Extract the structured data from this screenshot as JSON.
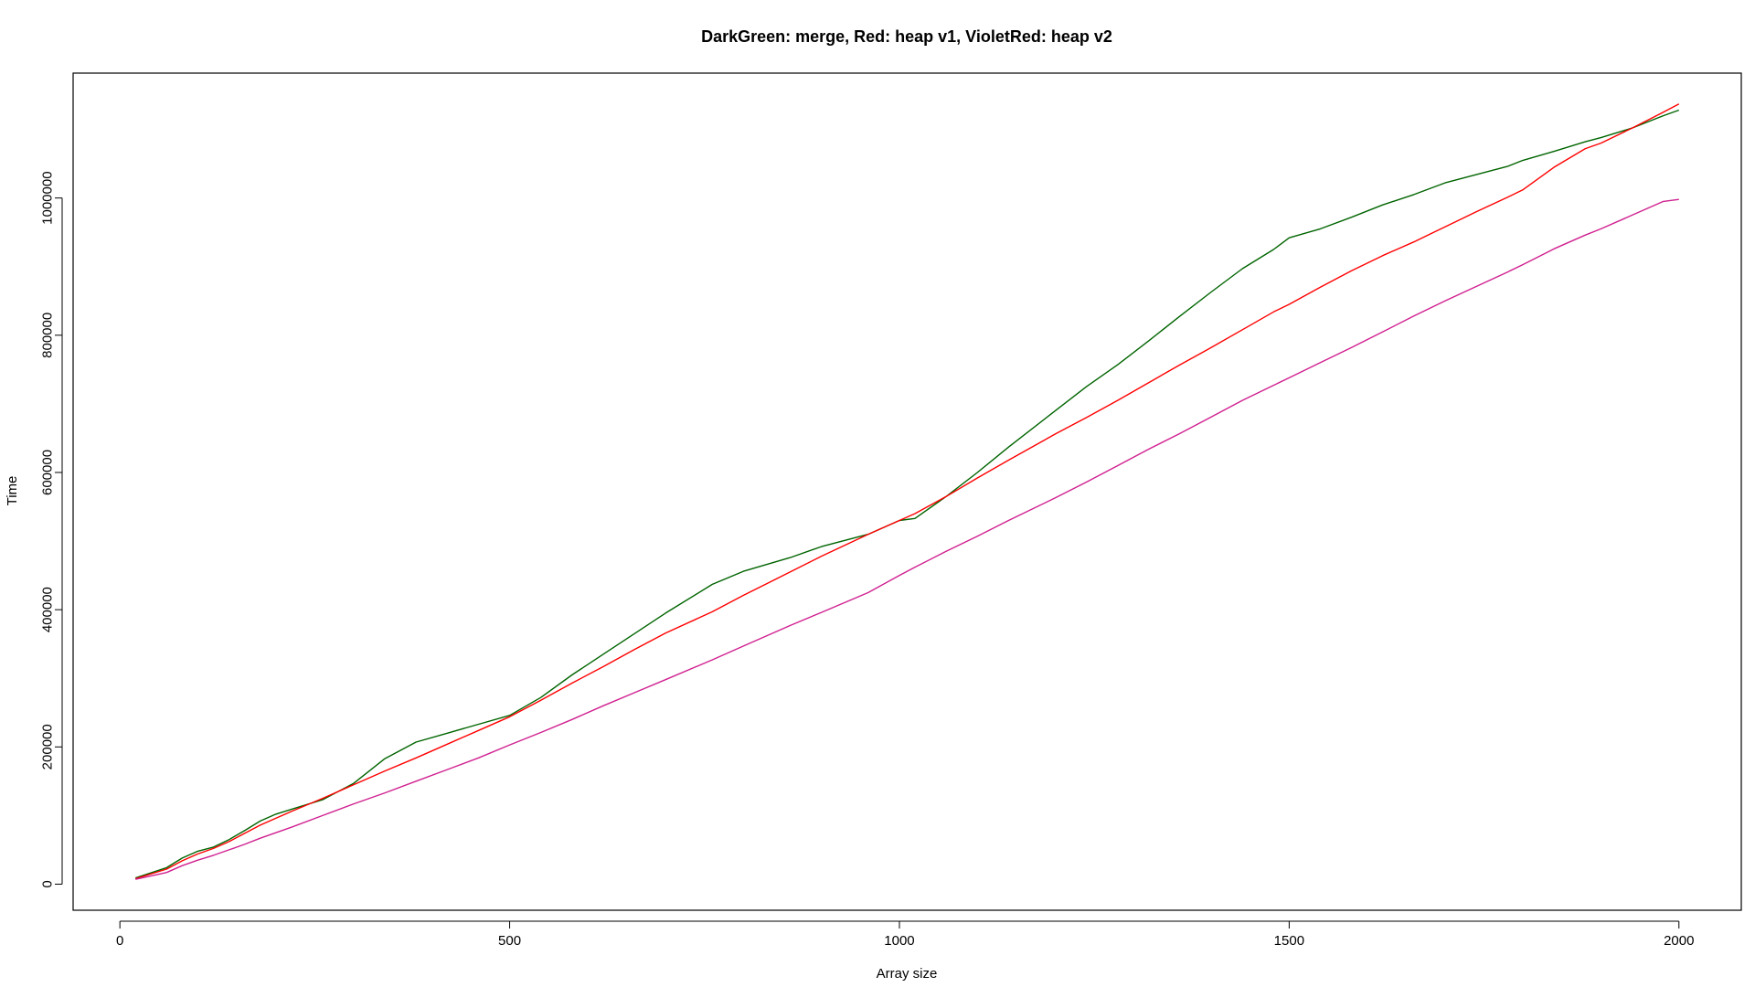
{
  "chart_data": {
    "type": "line",
    "title": "DarkGreen: merge, Red: heap v1, VioletRed: heap v2",
    "xlabel": "Array size",
    "ylabel": "Time",
    "xlim": [
      -60,
      2080
    ],
    "ylim": [
      -38000,
      1182000
    ],
    "x_ticks": [
      0,
      500,
      1000,
      1500,
      2000
    ],
    "y_ticks": [
      0,
      200000,
      400000,
      600000,
      800000,
      1000000
    ],
    "grid": false,
    "legend": "none",
    "x": [
      20,
      60,
      80,
      100,
      120,
      140,
      160,
      180,
      200,
      220,
      260,
      300,
      340,
      380,
      420,
      460,
      500,
      540,
      580,
      620,
      660,
      700,
      760,
      800,
      860,
      900,
      960,
      1000,
      1020,
      1060,
      1100,
      1140,
      1200,
      1240,
      1280,
      1320,
      1360,
      1400,
      1440,
      1480,
      1500,
      1540,
      1580,
      1620,
      1660,
      1700,
      1740,
      1780,
      1800,
      1840,
      1880,
      1900,
      1940,
      1980,
      2000
    ],
    "series": [
      {
        "color": "#006400",
        "values": [
          9000,
          24000,
          38000,
          48000,
          54000,
          65000,
          78000,
          92000,
          102000,
          109000,
          123000,
          147000,
          183000,
          207000,
          220000,
          233000,
          246000,
          272000,
          305000,
          335000,
          365000,
          395000,
          437000,
          456000,
          476000,
          492000,
          510000,
          530000,
          533000,
          565000,
          600000,
          637000,
          690000,
          725000,
          757000,
          792000,
          828000,
          863000,
          897000,
          925000,
          942000,
          955000,
          972000,
          990000,
          1005000,
          1022000,
          1034000,
          1046000,
          1055000,
          1068000,
          1082000,
          1088000,
          1102000,
          1120000,
          1128000
        ]
      },
      {
        "color": "#ff0000",
        "values": [
          8000,
          22000,
          34000,
          44000,
          52000,
          62000,
          74000,
          86000,
          96000,
          106000,
          125000,
          145000,
          165000,
          184000,
          204000,
          224000,
          244000,
          268000,
          293000,
          317000,
          342000,
          366000,
          397000,
          421000,
          455000,
          478000,
          510000,
          530000,
          540000,
          565000,
          592000,
          618000,
          656000,
          680000,
          705000,
          731000,
          757000,
          782000,
          808000,
          834000,
          845000,
          870000,
          894000,
          916000,
          936000,
          958000,
          980000,
          1001000,
          1012000,
          1045000,
          1072000,
          1080000,
          1102000,
          1125000,
          1137000
        ]
      },
      {
        "color": "#d02090",
        "values": [
          7000,
          17000,
          27000,
          35000,
          42000,
          50000,
          58000,
          67000,
          75000,
          83000,
          100000,
          117000,
          133000,
          150000,
          167000,
          184000,
          203000,
          221000,
          240000,
          260000,
          279000,
          298000,
          327000,
          347000,
          377000,
          396000,
          425000,
          450000,
          462000,
          485000,
          507000,
          530000,
          563000,
          586000,
          610000,
          634000,
          657000,
          681000,
          705000,
          727000,
          738000,
          760000,
          782000,
          805000,
          828000,
          850000,
          871000,
          892000,
          903000,
          926000,
          946000,
          955000,
          975000,
          995000,
          998000
        ]
      }
    ]
  }
}
